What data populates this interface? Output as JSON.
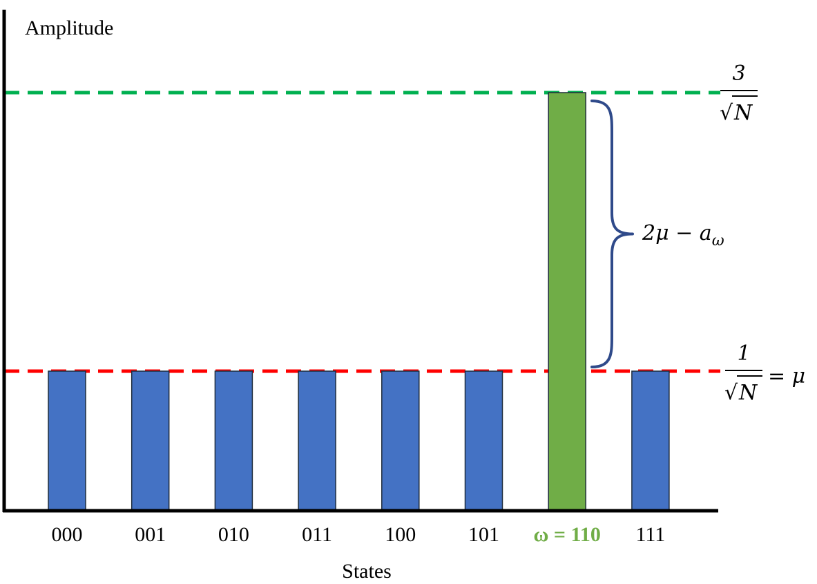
{
  "chart_data": {
    "type": "bar",
    "ylabel": "Amplitude",
    "xlabel": "States",
    "categories": [
      "000",
      "001",
      "010",
      "011",
      "100",
      "101",
      "ω = 110",
      "111"
    ],
    "values": [
      1,
      1,
      1,
      1,
      1,
      1,
      3,
      1
    ],
    "value_unit": "1/√N",
    "ylim": [
      0,
      3
    ],
    "highlight_index": 6,
    "colors": {
      "bar": "#4472C4",
      "highlight_bar": "#70AD47",
      "highlight_label": "#70AD47",
      "bar_border": "#1F2D3D",
      "upper_line": "#00B050",
      "mean_line": "#FF0000",
      "brace": "#2F4A8A",
      "axis": "#000000"
    },
    "reference_lines": [
      {
        "name": "upper",
        "value": 3,
        "style": "dashed",
        "numerator": "3",
        "denominator": "N",
        "suffix": ""
      },
      {
        "name": "mean",
        "value": 1,
        "style": "dashed",
        "numerator": "1",
        "denominator": "N",
        "suffix": "= μ"
      }
    ],
    "brace_annotation": {
      "from": 1,
      "to": 3,
      "main": "2μ − a",
      "subscript": "ω"
    },
    "grid": false,
    "legend": "none"
  }
}
